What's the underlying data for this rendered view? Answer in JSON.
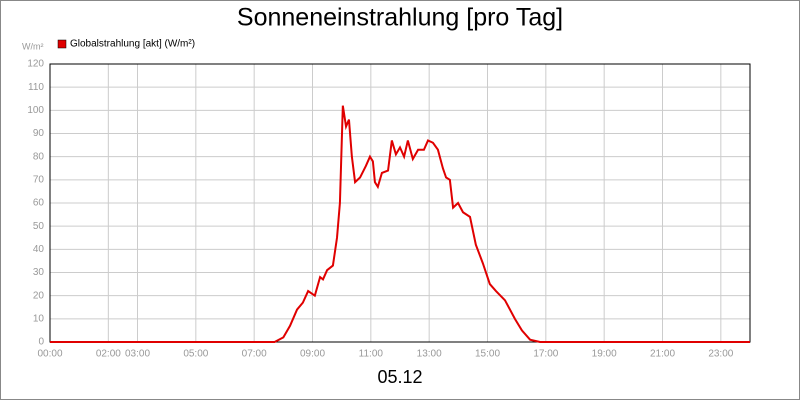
{
  "chart_data": {
    "type": "line",
    "title": "Sonneneinstrahlung [pro Tag]",
    "y_label": "W/m²",
    "x_label": "05.12",
    "x": [
      0,
      7.7,
      8.0,
      8.23,
      8.47,
      8.67,
      8.85,
      9.08,
      9.26,
      9.36,
      9.5,
      9.7,
      9.84,
      9.94,
      10.04,
      10.15,
      10.25,
      10.35,
      10.46,
      10.63,
      10.83,
      10.97,
      11.07,
      11.14,
      11.24,
      11.38,
      11.59,
      11.72,
      11.86,
      12.0,
      12.14,
      12.27,
      12.44,
      12.62,
      12.82,
      12.96,
      13.13,
      13.3,
      13.47,
      13.58,
      13.71,
      13.82,
      13.99,
      14.16,
      14.4,
      14.6,
      14.84,
      15.08,
      15.29,
      15.6,
      15.94,
      16.18,
      16.46,
      16.8,
      24
    ],
    "series": [
      {
        "name": "Globalstrahlung [akt] (W/m²)",
        "color": "#e00000",
        "values": [
          0,
          0,
          2,
          7,
          14,
          17,
          22,
          20,
          28,
          27,
          31,
          33,
          45,
          60,
          102,
          93,
          96,
          80,
          69,
          71,
          76,
          80,
          78,
          69,
          67,
          73,
          74,
          87,
          81,
          84,
          80,
          87,
          79,
          83,
          83,
          87,
          86,
          83,
          75,
          71,
          70,
          58,
          60,
          56,
          54,
          42,
          34,
          25,
          22,
          18,
          10,
          5,
          1,
          0,
          0
        ]
      }
    ],
    "xlim": [
      0,
      24
    ],
    "xticks": [
      {
        "value": 0,
        "label": "00:00"
      },
      {
        "value": 2,
        "label": "02:00"
      },
      {
        "value": 3,
        "label": "03:00"
      },
      {
        "value": 5,
        "label": "05:00"
      },
      {
        "value": 7,
        "label": "07:00"
      },
      {
        "value": 9,
        "label": "09:00"
      },
      {
        "value": 11,
        "label": "11:00"
      },
      {
        "value": 13,
        "label": "13:00"
      },
      {
        "value": 15,
        "label": "15:00"
      },
      {
        "value": 17,
        "label": "17:00"
      },
      {
        "value": 19,
        "label": "19:00"
      },
      {
        "value": 21,
        "label": "21:00"
      },
      {
        "value": 23,
        "label": "23:00"
      }
    ],
    "ylim": [
      0,
      120
    ],
    "yticks": [
      0,
      10,
      20,
      30,
      40,
      50,
      60,
      70,
      80,
      90,
      100,
      110,
      120
    ],
    "grid": true
  }
}
